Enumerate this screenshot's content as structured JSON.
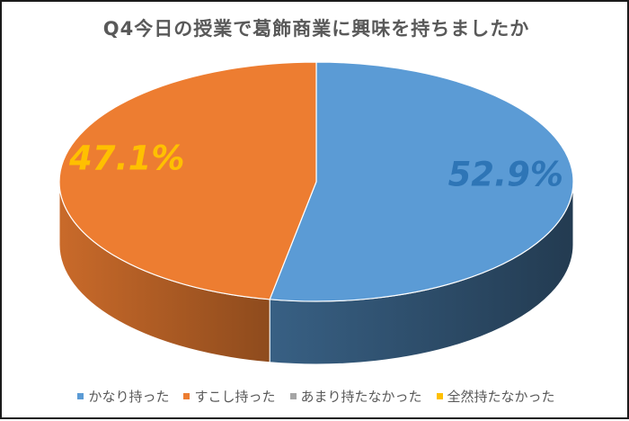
{
  "chart_data": {
    "type": "pie",
    "title": "Q4今日の授業で葛飾商業に興味を持ちましたか",
    "categories": [
      "かなり持った",
      "すこし持った",
      "あまり持たなかった",
      "全然持たなかった"
    ],
    "values": [
      52.9,
      47.1,
      0,
      0
    ],
    "value_labels": [
      "52.9%",
      "47.1%",
      "",
      ""
    ],
    "colors": [
      "#5b9bd5",
      "#ed7d31",
      "#a5a5a5",
      "#ffc000"
    ],
    "label_colors": [
      "#2e75b6",
      "#ffc000",
      "",
      ""
    ],
    "legend_position": "bottom",
    "style": "3d"
  }
}
